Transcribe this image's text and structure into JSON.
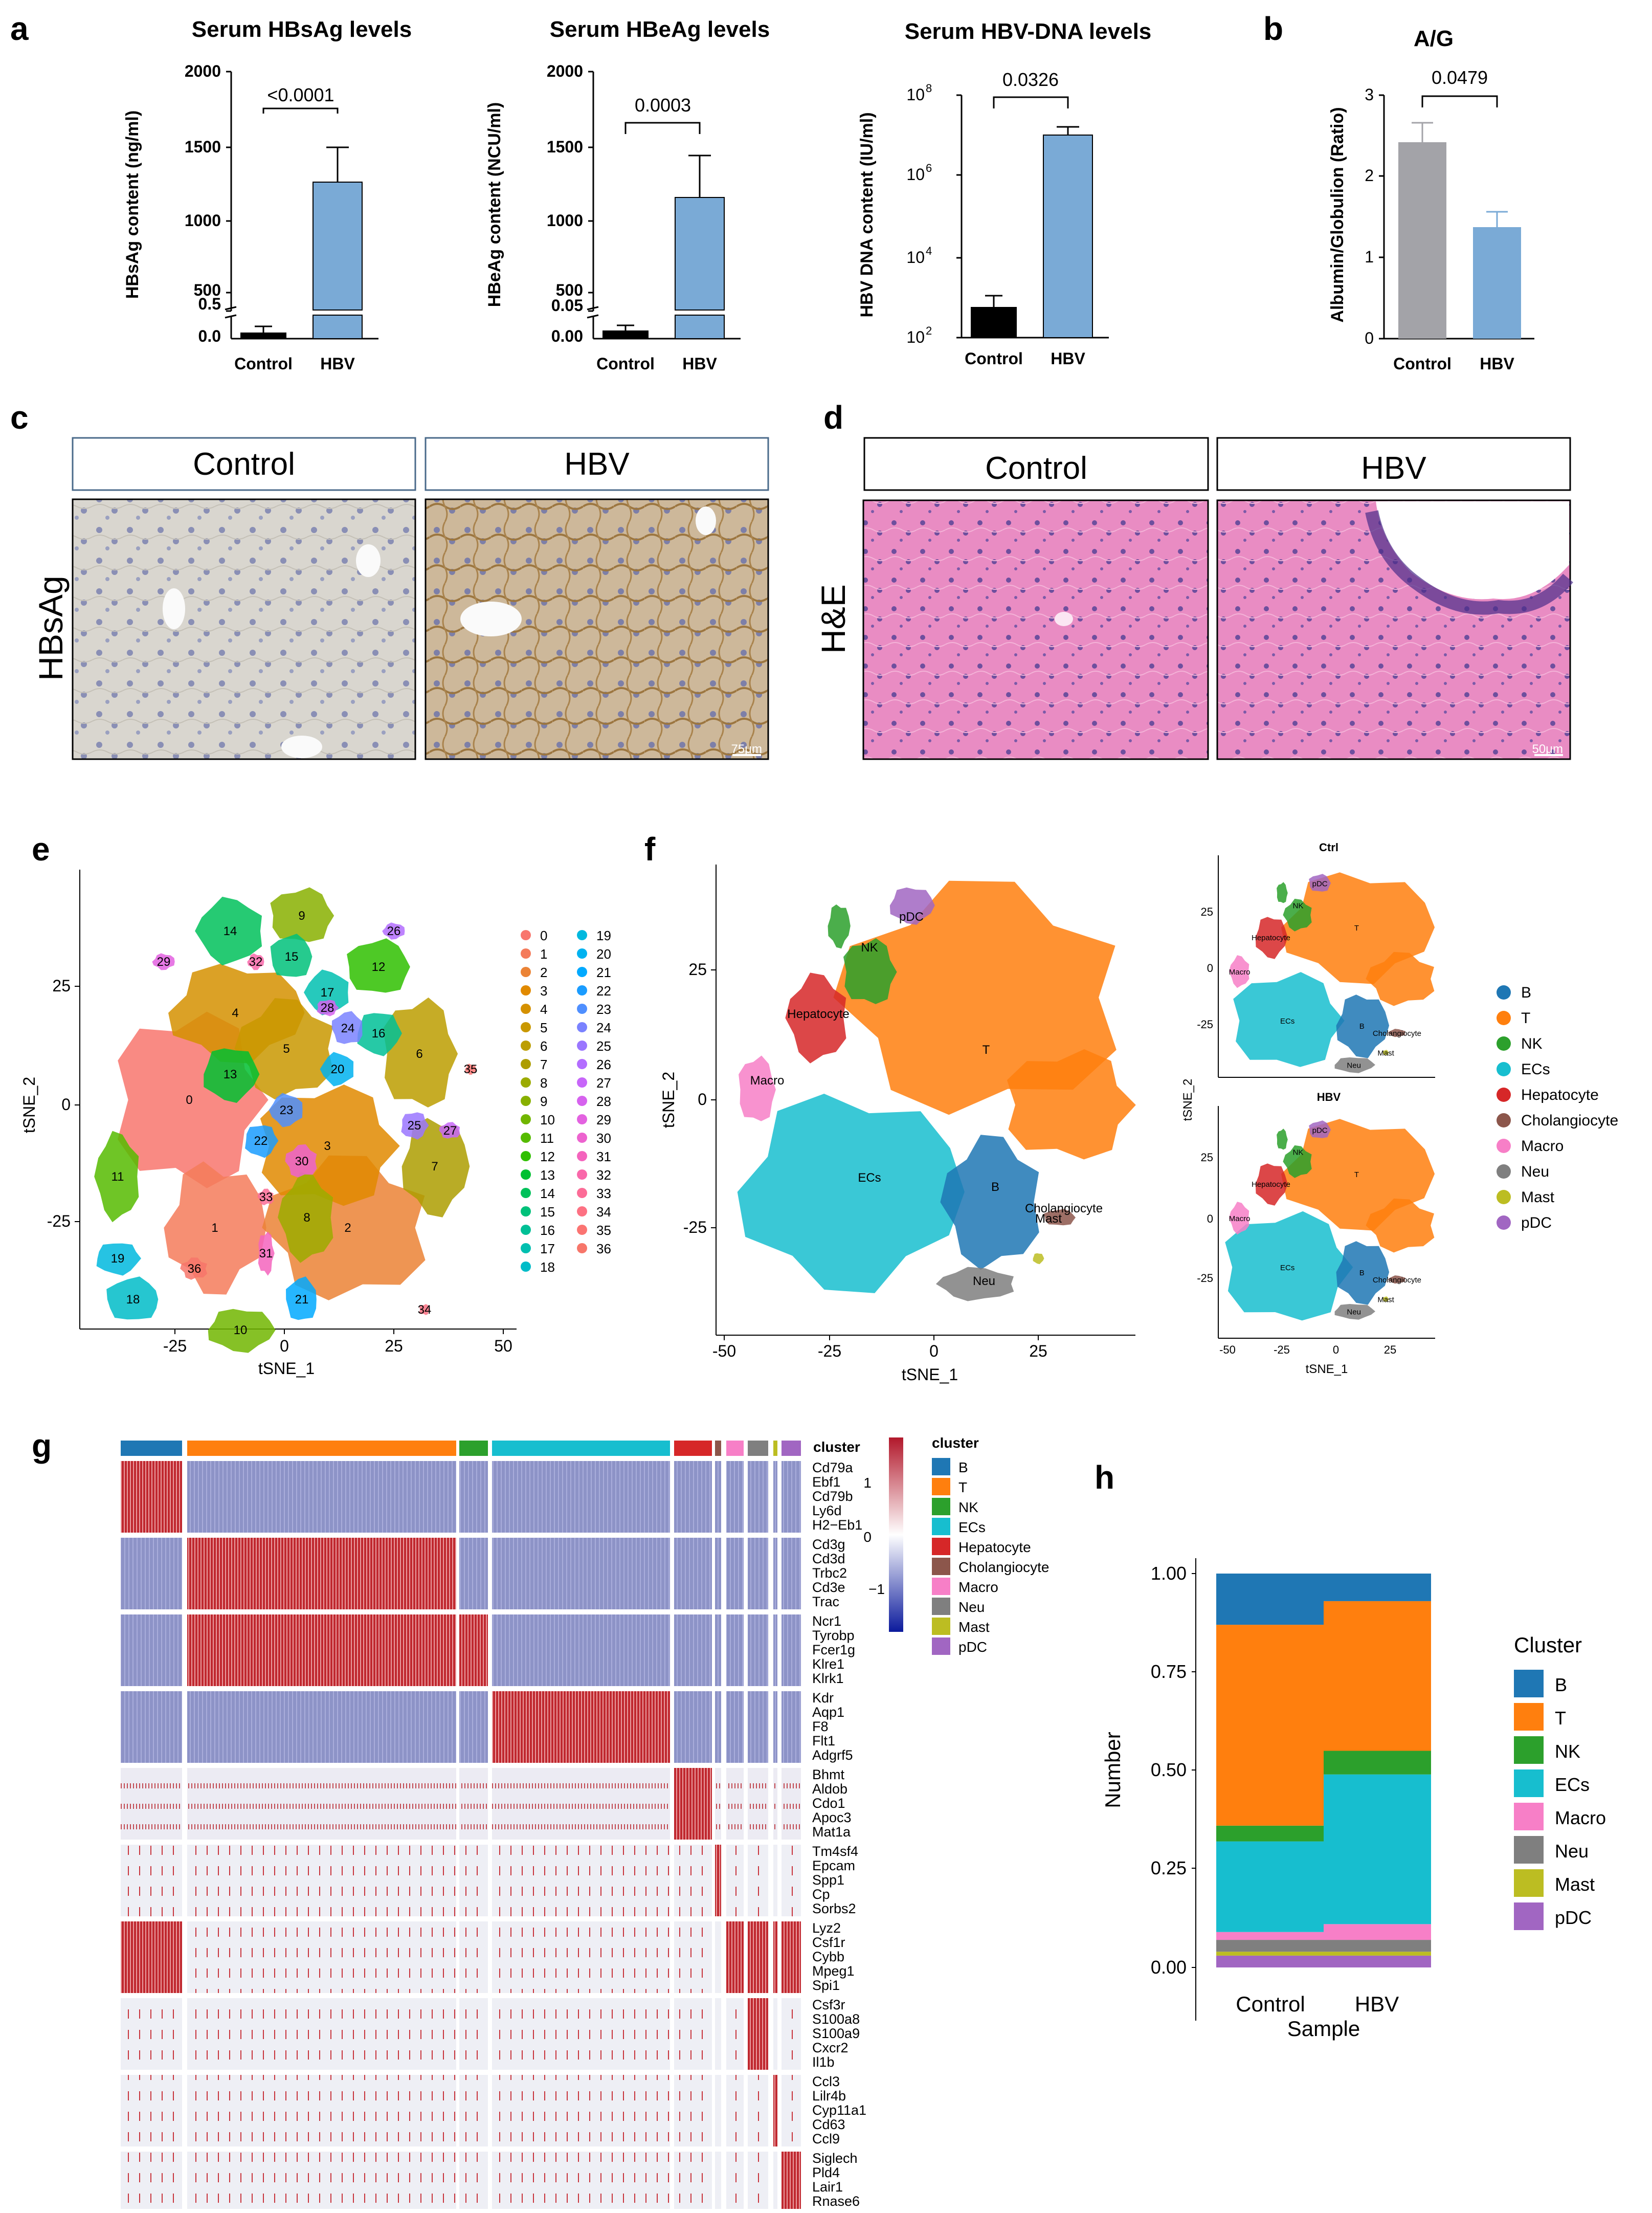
{
  "panels": {
    "a": "a",
    "b": "b",
    "c": "c",
    "d": "d",
    "e": "e",
    "f": "f",
    "g": "g",
    "h": "h"
  },
  "colors": {
    "control_bar": "#000000",
    "hbv_bar": "#7aaad6",
    "ag_control": "#a3a3a8",
    "ag_hbv": "#7aaad6"
  },
  "chart_data": [
    {
      "id": "hbsag",
      "type": "bar",
      "title": "Serum HBsAg levels",
      "ylabel": "HBsAg content (ng/ml)",
      "categories": [
        "Control",
        "HBV"
      ],
      "values": [
        0.1,
        1250
      ],
      "errors": [
        0.12,
        240
      ],
      "yticks": [
        "0.0",
        "0.5",
        "500",
        "1000",
        "1500",
        "2000"
      ],
      "axis_break": [
        0.5,
        500
      ],
      "pvalue": "<0.0001"
    },
    {
      "id": "hbeag",
      "type": "bar",
      "title": "Serum HBeAg levels",
      "ylabel": "HBeAg content (NCU/ml)",
      "categories": [
        "Control",
        "HBV"
      ],
      "values": [
        0.012,
        1160
      ],
      "errors": [
        0.01,
        280
      ],
      "yticks": [
        "0.00",
        "0.05",
        "500",
        "1000",
        "1500",
        "2000"
      ],
      "axis_break": [
        0.05,
        500
      ],
      "pvalue": "0.0003"
    },
    {
      "id": "hbvdna",
      "type": "bar",
      "title": "Serum HBV-DNA levels",
      "ylabel": "HBV DNA content (IU/ml)",
      "categories": [
        "Control",
        "HBV"
      ],
      "values": [
        500,
        10000000
      ],
      "errors": [
        600,
        5000000
      ],
      "yscale": "log",
      "ylim": [
        100,
        100000000
      ],
      "yticks": [
        {
          "base": "10",
          "exp": "2",
          "value": 100
        },
        {
          "base": "10",
          "exp": "4",
          "value": 10000
        },
        {
          "base": "10",
          "exp": "6",
          "value": 1000000
        },
        {
          "base": "10",
          "exp": "8",
          "value": 100000000
        }
      ],
      "pvalue": "0.0326"
    },
    {
      "id": "ag",
      "type": "bar",
      "title": "A/G",
      "ylabel": "Albumin/Globulion (Ratio)",
      "categories": [
        "Control",
        "HBV"
      ],
      "values": [
        2.42,
        1.38
      ],
      "errors": [
        0.38,
        0.3
      ],
      "ylim": [
        0,
        3
      ],
      "yticks": [
        "0",
        "1",
        "2",
        "3"
      ],
      "pvalue": "0.0479"
    },
    {
      "id": "stacked",
      "type": "bar",
      "stacked": true,
      "xlabel": "Sample",
      "ylabel": "Number",
      "legend_title": "Cluster",
      "categories": [
        "Control",
        "HBV"
      ],
      "yticks": [
        "0.00",
        "0.25",
        "0.50",
        "0.75",
        "1.00"
      ],
      "ylim": [
        0,
        1
      ],
      "series": [
        {
          "name": "pDC",
          "color": "#a166c2",
          "values": [
            0.03,
            0.03
          ]
        },
        {
          "name": "Mast",
          "color": "#bcbd22",
          "values": [
            0.01,
            0.01
          ]
        },
        {
          "name": "Neu",
          "color": "#7f7f7f",
          "values": [
            0.03,
            0.03
          ]
        },
        {
          "name": "Macro",
          "color": "#f77fc7",
          "values": [
            0.02,
            0.04
          ]
        },
        {
          "name": "ECs",
          "color": "#17becf",
          "values": [
            0.23,
            0.38
          ]
        },
        {
          "name": "NK",
          "color": "#2ca02c",
          "values": [
            0.04,
            0.06
          ]
        },
        {
          "name": "T",
          "color": "#ff7f0e",
          "values": [
            0.51,
            0.38
          ]
        },
        {
          "name": "B",
          "color": "#1f77b4",
          "values": [
            0.13,
            0.07
          ]
        }
      ]
    }
  ],
  "histology": {
    "c": {
      "row_label": "HBsAg",
      "headers": [
        "Control",
        "HBV"
      ],
      "scale": "75μm"
    },
    "d": {
      "row_label": "H&E",
      "headers": [
        "Control",
        "HBV"
      ],
      "scale": "50μm"
    }
  },
  "tsne": {
    "xlabel": "tSNE_1",
    "ylabel": "tSNE_2",
    "e_xticks": [
      "-25",
      "0",
      "25",
      "50"
    ],
    "e_yticks": [
      "25",
      "0",
      "-25"
    ],
    "f_xticks": [
      "-50",
      "-25",
      "0",
      "25"
    ],
    "f_yticks": [
      "25",
      "0",
      "-25"
    ],
    "small_xticks": [
      "-50",
      "-25",
      "0",
      "25"
    ],
    "small_yticks": [
      "25",
      "0",
      "-25"
    ],
    "ctrl_title": "Ctrl",
    "hbv_title": "HBV",
    "cluster_ids": [
      "0",
      "1",
      "2",
      "3",
      "4",
      "5",
      "6",
      "7",
      "8",
      "9",
      "10",
      "11",
      "12",
      "13",
      "14",
      "15",
      "16",
      "17",
      "18",
      "19",
      "20",
      "21",
      "22",
      "23",
      "24",
      "25",
      "26",
      "27",
      "28",
      "29",
      "30",
      "31",
      "32",
      "33",
      "34",
      "35",
      "36"
    ],
    "cluster_colors": [
      "#f8766d",
      "#f47b5b",
      "#eb8335",
      "#e18a00",
      "#d59100",
      "#c99800",
      "#bc9e00",
      "#ad9d00",
      "#9cab00",
      "#88b000",
      "#71b600",
      "#56bb00",
      "#2fbf00",
      "#00c031",
      "#00c15a",
      "#00c17a",
      "#00c096",
      "#00bfb0",
      "#00bcc8",
      "#00b8de",
      "#00b2f0",
      "#00a9ff",
      "#1a9cff",
      "#4f8fff",
      "#7a82ff",
      "#9a76ff",
      "#b36dff",
      "#c766f9",
      "#d662ee",
      "#e362e0",
      "#ed63cf",
      "#f464bd",
      "#f968aa",
      "#fc6c97",
      "#fd7183",
      "#fb7472",
      "#f7766a"
    ],
    "cell_types": [
      {
        "name": "B",
        "color": "#1f77b4"
      },
      {
        "name": "T",
        "color": "#ff7f0e"
      },
      {
        "name": "NK",
        "color": "#2ca02c"
      },
      {
        "name": "ECs",
        "color": "#17becf"
      },
      {
        "name": "Hepatocyte",
        "color": "#d62728"
      },
      {
        "name": "Cholangiocyte",
        "color": "#8c564b"
      },
      {
        "name": "Macro",
        "color": "#f77fc7"
      },
      {
        "name": "Neu",
        "color": "#7f7f7f"
      },
      {
        "name": "Mast",
        "color": "#bcbd22"
      },
      {
        "name": "pDC",
        "color": "#a166c2"
      }
    ]
  },
  "heatmap": {
    "annotation_label": "cluster",
    "legend_title": "cluster",
    "scale_ticks": [
      "1",
      "0",
      "−1"
    ],
    "gene_groups": [
      [
        "Cd79a",
        "Ebf1",
        "Cd79b",
        "Ly6d",
        "H2−Eb1"
      ],
      [
        "Cd3g",
        "Cd3d",
        "Trbc2",
        "Cd3e",
        "Trac"
      ],
      [
        "Ncr1",
        "Tyrobp",
        "Fcer1g",
        "Klre1",
        "Klrk1"
      ],
      [
        "Kdr",
        "Aqp1",
        "F8",
        "Flt1",
        "Adgrf5"
      ],
      [
        "Bhmt",
        "Aldob",
        "Cdo1",
        "Apoc3",
        "Mat1a"
      ],
      [
        "Tm4sf4",
        "Epcam",
        "Spp1",
        "Cp",
        "Sorbs2"
      ],
      [
        "Lyz2",
        "Csf1r",
        "Cybb",
        "Mpeg1",
        "Spi1"
      ],
      [
        "Csf3r",
        "S100a8",
        "S100a9",
        "Cxcr2",
        "Il1b"
      ],
      [
        "Ccl3",
        "Lilr4b",
        "Cyp11a1",
        "Cd63",
        "Ccl9"
      ],
      [
        "Siglech",
        "Pld4",
        "Lair1",
        "Rnase6"
      ]
    ]
  }
}
